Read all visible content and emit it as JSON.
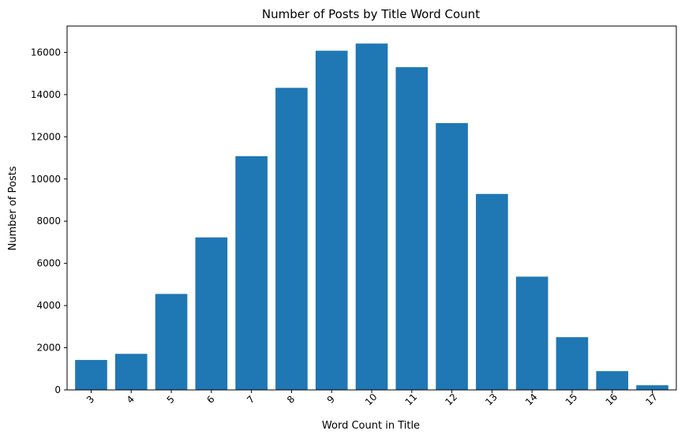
{
  "chart_data": {
    "type": "bar",
    "title": "Number of Posts by Title Word Count",
    "xlabel": "Word Count in Title",
    "ylabel": "Number of Posts",
    "categories": [
      "3",
      "4",
      "5",
      "6",
      "7",
      "8",
      "9",
      "10",
      "11",
      "12",
      "13",
      "14",
      "15",
      "16",
      "17"
    ],
    "values": [
      1420,
      1710,
      4550,
      7230,
      11080,
      14320,
      16080,
      16420,
      15300,
      12650,
      9290,
      5370,
      2500,
      890,
      220
    ],
    "ylim": [
      0,
      17250
    ],
    "yticks": [
      0,
      2000,
      4000,
      6000,
      8000,
      10000,
      12000,
      14000,
      16000
    ],
    "ytick_labels": [
      "0",
      "2000",
      "4000",
      "6000",
      "8000",
      "10000",
      "12000",
      "14000",
      "16000"
    ],
    "grid": false,
    "legend": "none",
    "bar_color": "#1f77b4",
    "xtick_rotation_deg": 45
  }
}
